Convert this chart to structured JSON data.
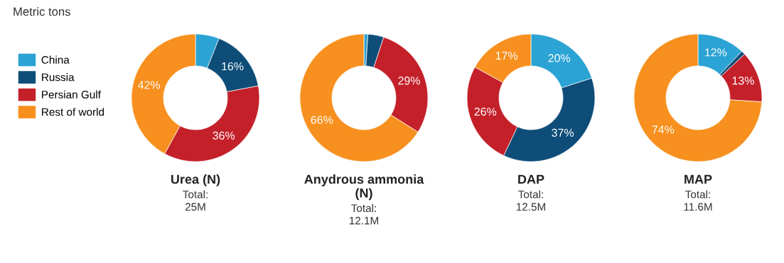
{
  "chart_data": [
    {
      "type": "donut",
      "title": "Urea (N)",
      "subtitle": "Total:\n25M",
      "annotations": [
        "Metric tons"
      ],
      "legend": "left",
      "categories": [
        "China",
        "Russia",
        "Persian Gulf",
        "Rest of world"
      ],
      "values": [
        6,
        16,
        36,
        42
      ],
      "value_labels": [
        null,
        "16%",
        "36%",
        "42%"
      ],
      "colors": [
        "#2ba3d4",
        "#0e4d78",
        "#c4202a",
        "#f7901e"
      ]
    },
    {
      "type": "donut",
      "title": "Anydrous ammonia\n(N)",
      "subtitle": "Total:\n12.1M",
      "categories": [
        null,
        null,
        null,
        null
      ],
      "values": [
        1,
        4,
        29,
        66
      ],
      "value_labels": [
        null,
        null,
        "29%",
        "66%"
      ],
      "colors": [
        "#2ba3d4",
        "#0e4d78",
        "#c4202a",
        "#f7901e"
      ]
    },
    {
      "type": "donut",
      "title": "DAP",
      "subtitle": "Total:\n12.5M",
      "categories": [
        null,
        null,
        null,
        null
      ],
      "values": [
        20,
        37,
        26,
        17
      ],
      "value_labels": [
        "20%",
        "37%",
        "26%",
        "17%"
      ],
      "colors": [
        "#2ba3d4",
        "#0e4d78",
        "#c4202a",
        "#f7901e"
      ]
    },
    {
      "type": "donut",
      "title": "MAP",
      "subtitle": "Total:\n11.6M",
      "categories": [
        null,
        null,
        null,
        null
      ],
      "values": [
        12,
        1,
        13,
        74
      ],
      "value_labels": [
        "12%",
        null,
        "13%",
        "74%"
      ],
      "colors": [
        "#2ba3d4",
        "#0e4d78",
        "#c4202a",
        "#f7901e"
      ]
    }
  ]
}
